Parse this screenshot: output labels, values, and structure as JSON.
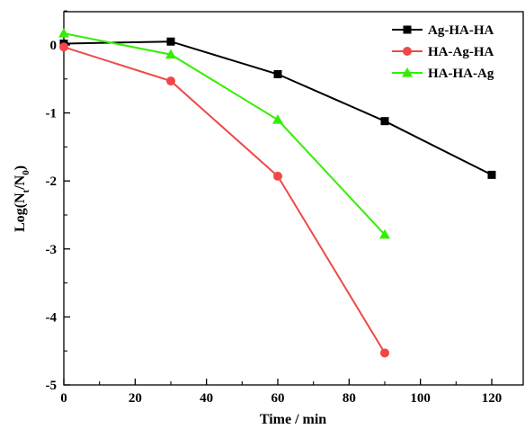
{
  "chart_data": {
    "type": "line",
    "xlabel": "Time / min",
    "ylabel": {
      "base": "Log(N",
      "sub1": "t",
      "mid": "/N",
      "sub2": "0",
      "end": ")"
    },
    "xlim": [
      0,
      130
    ],
    "ylim": [
      -5,
      0.5
    ],
    "x_ticks": [
      0,
      20,
      40,
      60,
      80,
      100,
      120
    ],
    "y_ticks": [
      0,
      -1,
      -2,
      -3,
      -4,
      -5
    ],
    "x_tick_labels": [
      "0",
      "20",
      "40",
      "60",
      "80",
      "100",
      "120"
    ],
    "y_tick_labels": [
      "0",
      "-1",
      "-2",
      "-3",
      "-4",
      "-5"
    ],
    "legend_position": "top-right",
    "grid": false,
    "series": [
      {
        "name": "Ag-HA-HA",
        "color": "#000000",
        "marker": "square",
        "x": [
          0,
          30,
          60,
          90,
          120
        ],
        "y": [
          0.02,
          0.05,
          -0.43,
          -1.12,
          -1.91
        ]
      },
      {
        "name": "HA-Ag-HA",
        "color": "#f04848",
        "marker": "circle",
        "x": [
          0,
          30,
          60,
          90
        ],
        "y": [
          -0.03,
          -0.53,
          -1.93,
          -4.53
        ]
      },
      {
        "name": "HA-HA-Ag",
        "color": "#33ee00",
        "marker": "triangle",
        "x": [
          0,
          30,
          60,
          90
        ],
        "y": [
          0.17,
          -0.14,
          -1.1,
          -2.79
        ]
      }
    ]
  }
}
